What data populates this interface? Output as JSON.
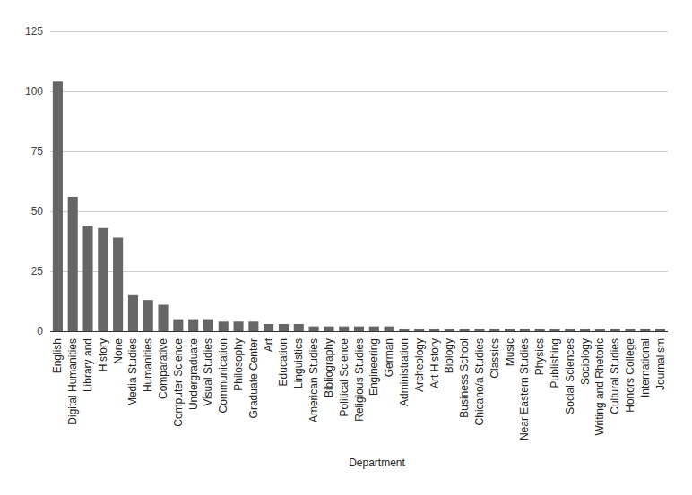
{
  "chart_data": {
    "type": "bar",
    "x_label": "Department",
    "categories": [
      "English",
      "Digital Humanities",
      "Library and",
      "History",
      "None",
      "Media Studies",
      "Humanities",
      "Comparative",
      "Computer Science",
      "Undergraduate",
      "Visual Studies",
      "Communication",
      "Philosophy",
      "Graduate Center",
      "Art",
      "Education",
      "Linguistics",
      "American Studies",
      "Bibliography",
      "Political Science",
      "Religious Studies",
      "Engineering",
      "German",
      "Administration",
      "Archeology",
      "Art History",
      "Biology",
      "Business School",
      "Chicano/a Studies",
      "Classics",
      "Music",
      "Near Eastern Studies",
      "Physics",
      "Publishing",
      "Social Sciences",
      "Sociology",
      "Writing and Rhetoric",
      "Cultural Studies",
      "Honors College",
      "International",
      "Journalism"
    ],
    "values": [
      104,
      56,
      44,
      43,
      39,
      15,
      13,
      11,
      5,
      5,
      5,
      4,
      4,
      4,
      3,
      3,
      3,
      2,
      2,
      2,
      2,
      2,
      2,
      1,
      1,
      1,
      1,
      1,
      1,
      1,
      1,
      1,
      1,
      1,
      1,
      1,
      1,
      1,
      1,
      1,
      1
    ],
    "color": "#666666",
    "ylim": [
      0,
      125
    ],
    "yticks": [
      0,
      25,
      50,
      75,
      100,
      125
    ],
    "grid": true
  }
}
